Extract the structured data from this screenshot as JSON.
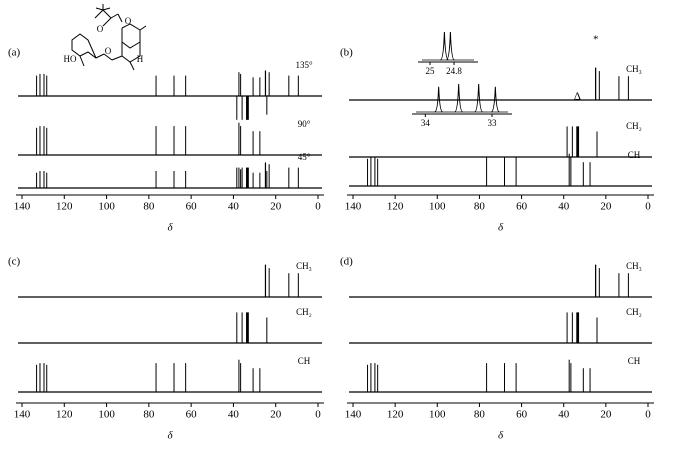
{
  "chart_data": [
    {
      "type": "spectrum",
      "label": "(a)",
      "xlabel": "δ",
      "xlim": [
        140,
        0
      ],
      "xticks": [
        140,
        120,
        100,
        80,
        60,
        40,
        20,
        0
      ],
      "color": "#000000",
      "structure": {
        "atoms": [
          "O",
          "O",
          "O",
          "HO",
          "H"
        ]
      },
      "series": [
        {
          "name": "135°",
          "x": [
            133.1,
            131.5,
            129.6,
            128.3,
            76.6,
            68.1,
            62.6,
            37.4,
            36.6,
            30.7,
            27.5,
            38.4,
            35.9,
            33.8,
            33.5,
            33.2,
            32.95,
            24.2,
            24.9,
            24.8,
            23.1,
            13.8,
            9.3
          ],
          "values": [
            0.6,
            0.65,
            0.65,
            0.6,
            0.6,
            0.6,
            0.6,
            0.7,
            0.65,
            0.55,
            0.55,
            -0.7,
            -0.7,
            -0.7,
            -0.7,
            -0.7,
            -0.7,
            -0.55,
            0.75,
            0.75,
            0.7,
            0.6,
            0.6
          ]
        },
        {
          "name": "90°",
          "x": [
            133.1,
            131.5,
            129.6,
            128.3,
            76.6,
            68.1,
            62.6,
            37.4,
            36.6,
            30.7,
            27.5
          ],
          "values": [
            0.8,
            0.85,
            0.85,
            0.8,
            0.85,
            0.85,
            0.85,
            0.95,
            0.85,
            0.7,
            0.7
          ]
        },
        {
          "name": "45°",
          "x": [
            133.1,
            131.5,
            129.6,
            128.3,
            76.6,
            68.1,
            62.6,
            37.4,
            36.6,
            30.7,
            27.5,
            38.4,
            35.9,
            33.8,
            33.5,
            33.2,
            32.95,
            24.2,
            24.9,
            24.8,
            23.1,
            13.8,
            9.3
          ],
          "values": [
            0.45,
            0.5,
            0.5,
            0.45,
            0.5,
            0.5,
            0.5,
            0.6,
            0.55,
            0.45,
            0.45,
            0.6,
            0.6,
            0.6,
            0.6,
            0.6,
            0.6,
            0.5,
            0.75,
            0.75,
            0.7,
            0.6,
            0.6
          ]
        }
      ]
    },
    {
      "type": "spectrum",
      "label": "(b)",
      "xlabel": "δ",
      "xlim": [
        140,
        0
      ],
      "xticks": [
        140,
        120,
        100,
        80,
        60,
        40,
        20,
        0
      ],
      "color": "#000000",
      "series": [
        {
          "name": "CH₃",
          "x": [
            24.9,
            24.8,
            23.1,
            13.8,
            9.3
          ],
          "values": [
            0.95,
            0.95,
            0.85,
            0.7,
            0.7
          ]
        },
        {
          "name": "CH₂",
          "x": [
            38.4,
            35.9,
            33.8,
            33.5,
            33.2,
            32.95,
            24.2
          ],
          "values": [
            0.9,
            0.9,
            0.9,
            0.9,
            0.9,
            0.9,
            0.75
          ]
        },
        {
          "name": "CH",
          "x": [
            133.1,
            131.5,
            129.6,
            128.3,
            76.6,
            68.1,
            62.6,
            37.4,
            36.6,
            30.7,
            27.5
          ],
          "values": [
            0.8,
            0.85,
            0.85,
            0.8,
            0.85,
            0.85,
            0.85,
            0.95,
            0.85,
            0.7,
            0.7
          ]
        }
      ],
      "annotations": [
        {
          "text": "*",
          "x": 24.8
        },
        {
          "text": "Δ",
          "x": 33.5
        }
      ],
      "insets": [
        {
          "xlim": [
            25.1,
            24.6
          ],
          "xticks": [
            25,
            24.8
          ],
          "x": [
            24.88,
            24.83
          ],
          "values": [
            1,
            1
          ]
        },
        {
          "xlim": [
            34.2,
            32.7
          ],
          "xticks": [
            34,
            33
          ],
          "x": [
            33.8,
            33.5,
            33.2,
            32.95
          ],
          "values": [
            0.9,
            1,
            1,
            0.9
          ]
        }
      ]
    },
    {
      "type": "spectrum",
      "label": "(c)",
      "xlabel": "δ",
      "xlim": [
        140,
        0
      ],
      "xticks": [
        140,
        120,
        100,
        80,
        60,
        40,
        20,
        0
      ],
      "color": "#000000",
      "series": [
        {
          "name": "CH₃",
          "x": [
            24.9,
            24.8,
            23.1,
            13.8,
            9.3
          ],
          "values": [
            0.95,
            0.95,
            0.85,
            0.7,
            0.7
          ]
        },
        {
          "name": "CH₂",
          "x": [
            38.4,
            35.9,
            33.8,
            33.5,
            33.2,
            32.95,
            24.2
          ],
          "values": [
            0.9,
            0.9,
            0.9,
            0.9,
            0.9,
            0.9,
            0.75
          ]
        },
        {
          "name": "CH",
          "x": [
            133.1,
            131.5,
            129.6,
            128.3,
            76.6,
            68.1,
            62.6,
            37.4,
            36.6,
            30.7,
            27.5
          ],
          "values": [
            0.8,
            0.85,
            0.85,
            0.8,
            0.85,
            0.85,
            0.85,
            0.95,
            0.85,
            0.7,
            0.7
          ]
        }
      ]
    },
    {
      "type": "spectrum",
      "label": "(d)",
      "xlabel": "δ",
      "xlim": [
        140,
        0
      ],
      "xticks": [
        140,
        120,
        100,
        80,
        60,
        40,
        20,
        0
      ],
      "color": "#000000",
      "series": [
        {
          "name": "CH₃",
          "x": [
            24.9,
            24.8,
            23.1,
            13.8,
            9.3
          ],
          "values": [
            0.95,
            0.95,
            0.85,
            0.7,
            0.7
          ]
        },
        {
          "name": "CH₂",
          "x": [
            38.4,
            35.9,
            33.8,
            33.5,
            33.2,
            32.95,
            24.2
          ],
          "values": [
            0.9,
            0.9,
            0.9,
            0.9,
            0.9,
            0.9,
            0.75
          ]
        },
        {
          "name": "CH",
          "x": [
            133.1,
            131.5,
            129.6,
            128.3,
            76.6,
            68.1,
            62.6,
            37.4,
            36.6,
            30.7,
            27.5
          ],
          "values": [
            0.8,
            0.85,
            0.85,
            0.8,
            0.85,
            0.85,
            0.85,
            0.95,
            0.85,
            0.7,
            0.7
          ]
        }
      ]
    }
  ]
}
